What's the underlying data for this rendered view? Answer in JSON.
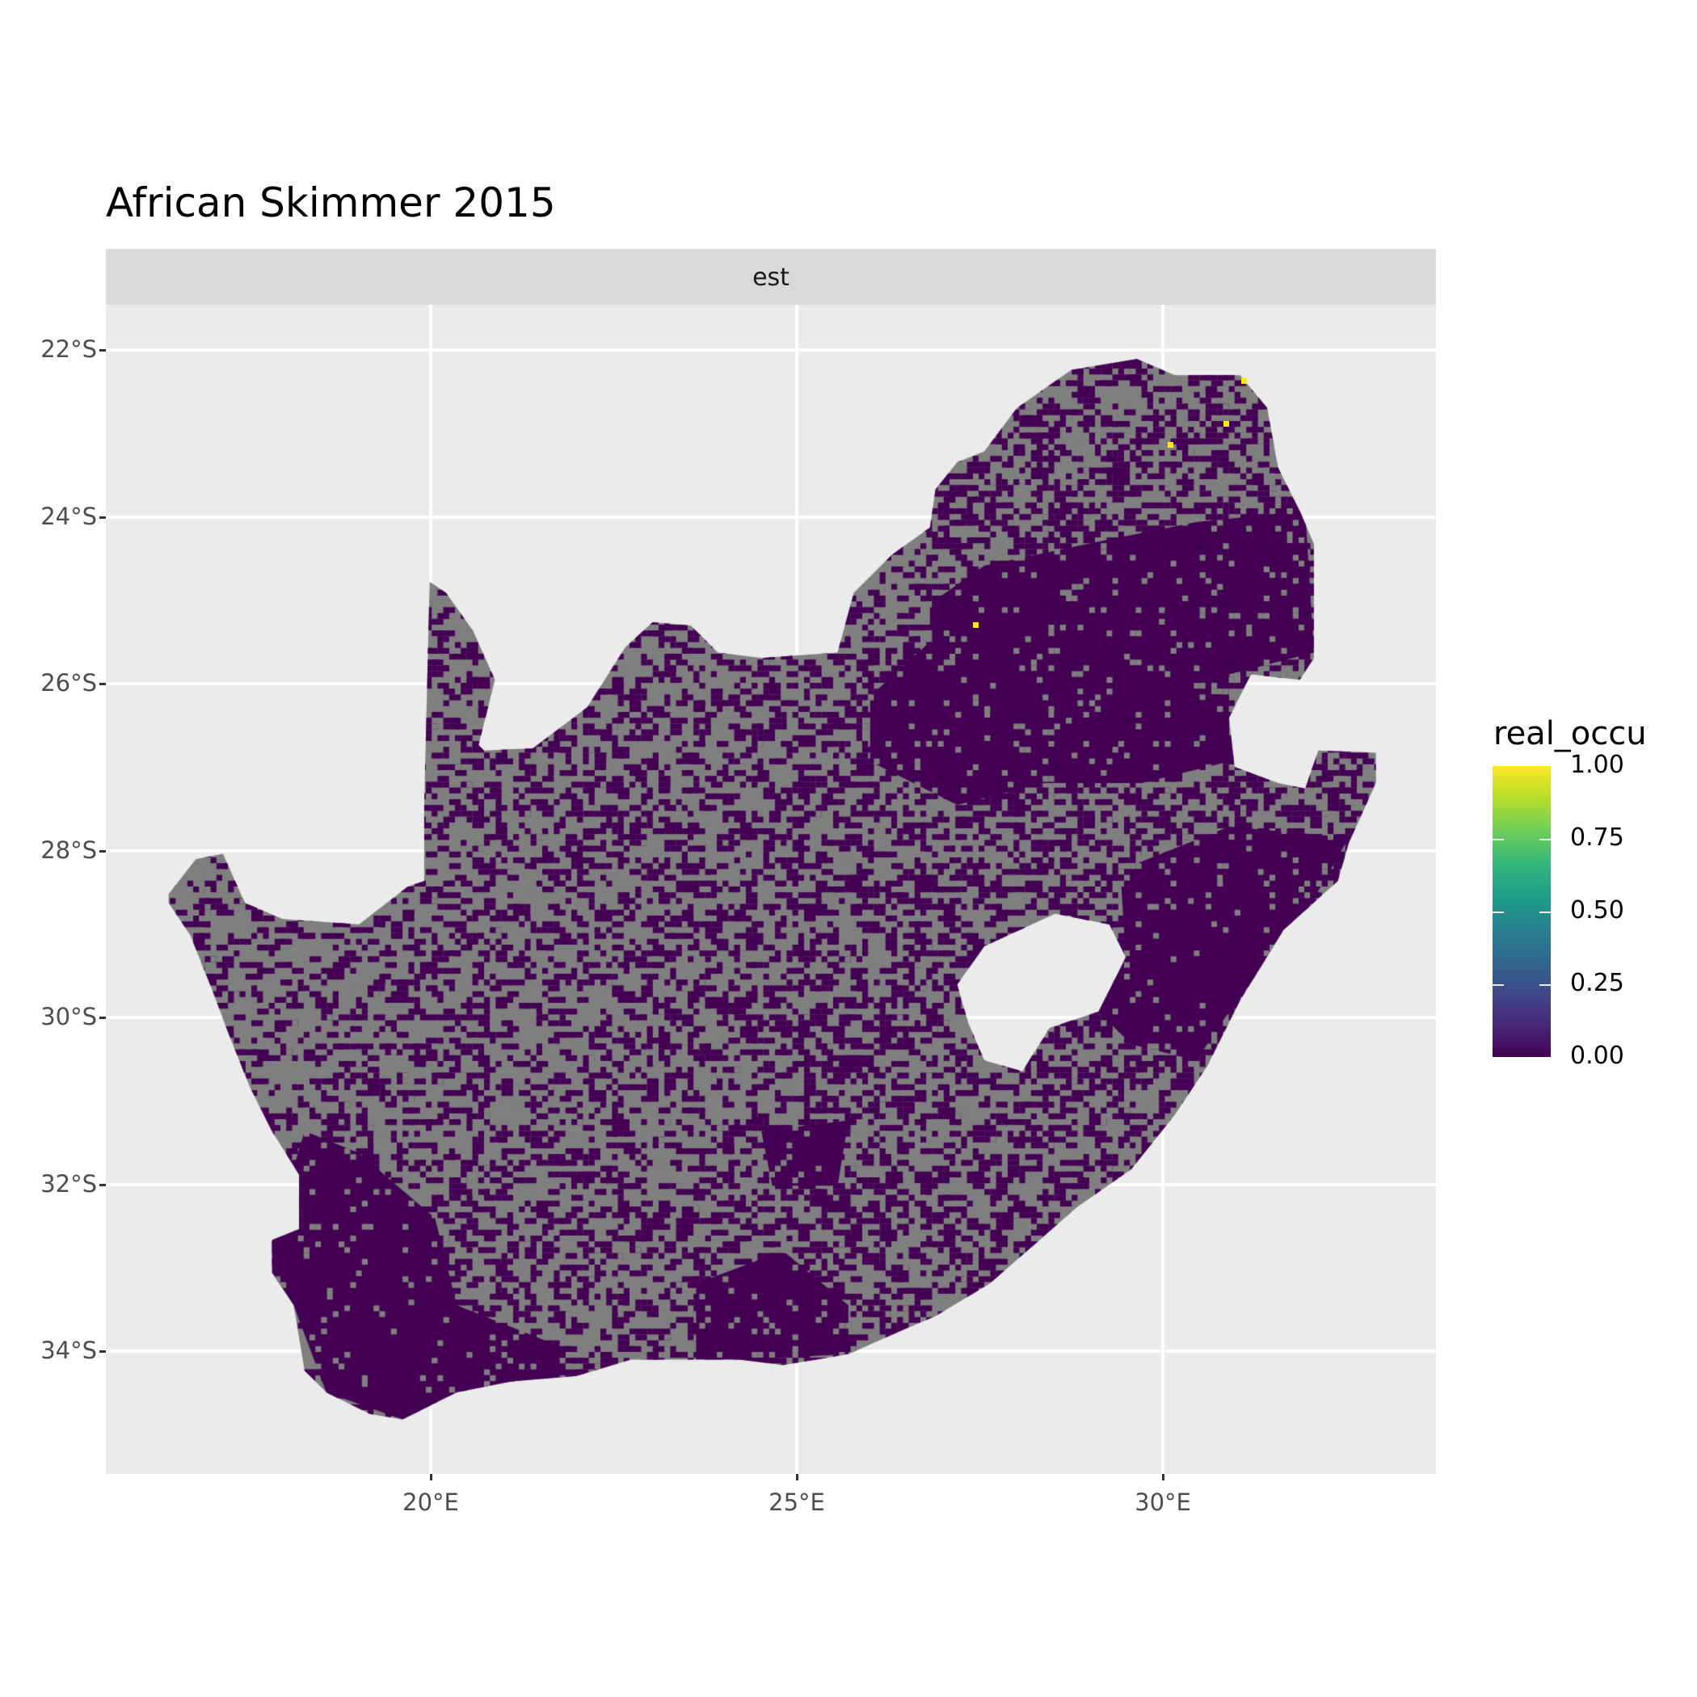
{
  "chart_data": {
    "type": "heatmap",
    "title": "African Skimmer 2015",
    "facet_label": "est",
    "xlabel": "",
    "ylabel": "",
    "x_ticks": [
      {
        "value": 20,
        "label": "20°E"
      },
      {
        "value": 25,
        "label": "25°E"
      },
      {
        "value": 30,
        "label": "30°E"
      }
    ],
    "y_ticks": [
      {
        "value": -22,
        "label": "22°S"
      },
      {
        "value": -24,
        "label": "24°S"
      },
      {
        "value": -26,
        "label": "26°S"
      },
      {
        "value": -28,
        "label": "28°S"
      },
      {
        "value": -30,
        "label": "30°S"
      },
      {
        "value": -32,
        "label": "32°S"
      },
      {
        "value": -34,
        "label": "34°S"
      }
    ],
    "xlim": [
      15.6,
      33.8
    ],
    "ylim": [
      -35.4,
      -21.5
    ],
    "legend": {
      "title": "real_occu",
      "placement": "right",
      "scale": "viridis",
      "range": [
        0,
        1
      ],
      "ticks": [
        {
          "value": 1.0,
          "label": "1.00"
        },
        {
          "value": 0.75,
          "label": "0.75"
        },
        {
          "value": 0.5,
          "label": "0.50"
        },
        {
          "value": 0.25,
          "label": "0.25"
        },
        {
          "value": 0.0,
          "label": "0.00"
        }
      ]
    },
    "grid": true,
    "colors": {
      "na": "#7f7f7f",
      "low": "#440154",
      "high": "#fde725",
      "panel": "#ebebeb",
      "strip": "#d9d9d9"
    },
    "high_occupancy_points": [
      {
        "lon": 31.1,
        "lat": -22.37,
        "value": 1.0
      },
      {
        "lon": 30.86,
        "lat": -22.88,
        "value": 1.0
      },
      {
        "lon": 30.1,
        "lat": -23.13,
        "value": 1.0
      },
      {
        "lon": 27.44,
        "lat": -25.29,
        "value": 1.0
      }
    ]
  }
}
